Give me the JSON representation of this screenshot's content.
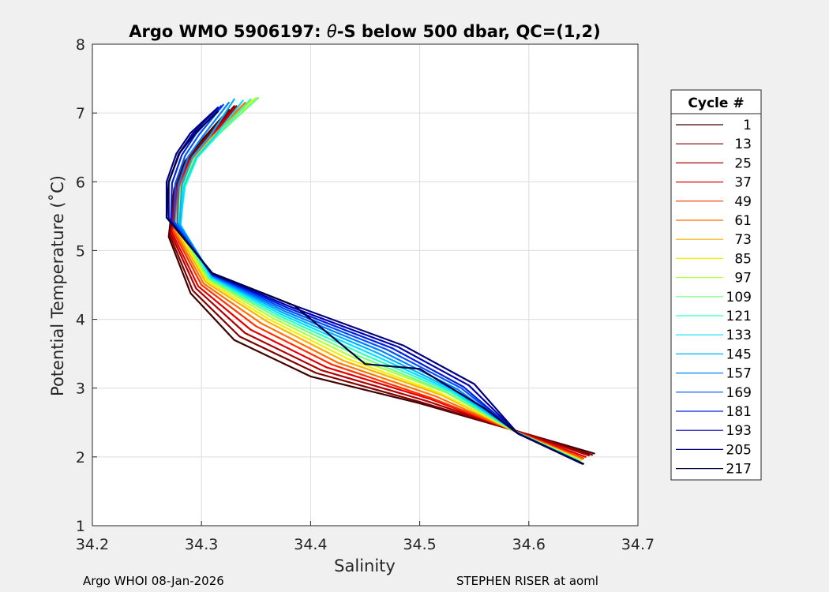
{
  "chart_data": {
    "type": "line",
    "title_prefix": "Argo WMO 5906197: ",
    "title_theta": "θ",
    "title_suffix": "-S below 500 dbar,  QC=(1,2)",
    "xlabel": "Salinity",
    "ylabel": "Potential Temperature (˚C)",
    "xlim": [
      34.2,
      34.7
    ],
    "ylim": [
      1,
      8
    ],
    "xticks": [
      "34.2",
      "34.3",
      "34.4",
      "34.5",
      "34.6",
      "34.7"
    ],
    "yticks": [
      "1",
      "2",
      "3",
      "4",
      "5",
      "6",
      "7",
      "8"
    ],
    "grid": true,
    "legend": {
      "title": "Cycle #",
      "placement": "right-outside",
      "entries": [
        "1",
        "13",
        "25",
        "37",
        "49",
        "61",
        "73",
        "85",
        "97",
        "109",
        "121",
        "133",
        "145",
        "157",
        "169",
        "181",
        "193",
        "205",
        "217"
      ],
      "colors": [
        "#400000",
        "#800000",
        "#b00000",
        "#e00000",
        "#ff3000",
        "#ff7000",
        "#ffb000",
        "#f0f000",
        "#b0ff40",
        "#70ff80",
        "#30ffc0",
        "#00e0ff",
        "#00b0ff",
        "#0080ff",
        "#0050ff",
        "#0020e0",
        "#0000b0",
        "#000080",
        "#000040"
      ]
    },
    "series": [
      {
        "name": "1",
        "x": [
          34.66,
          34.59,
          34.5,
          34.4,
          34.33,
          34.29,
          34.27,
          34.275,
          34.285,
          34.3,
          34.325
        ],
        "y": [
          2.05,
          2.37,
          2.78,
          3.17,
          3.7,
          4.38,
          5.2,
          5.9,
          6.3,
          6.6,
          7.05
        ]
      },
      {
        "name": "13",
        "x": [
          34.658,
          34.59,
          34.5,
          34.405,
          34.335,
          34.292,
          34.271,
          34.276,
          34.287,
          34.302,
          34.33
        ],
        "y": [
          2.03,
          2.37,
          2.8,
          3.22,
          3.75,
          4.42,
          5.22,
          5.9,
          6.3,
          6.6,
          7.1
        ]
      },
      {
        "name": "25",
        "x": [
          34.655,
          34.59,
          34.505,
          34.41,
          34.34,
          34.295,
          34.272,
          34.277,
          34.288,
          34.304,
          34.332
        ],
        "y": [
          2.02,
          2.37,
          2.82,
          3.26,
          3.8,
          4.45,
          5.24,
          5.9,
          6.3,
          6.6,
          7.1
        ]
      },
      {
        "name": "37",
        "x": [
          34.652,
          34.59,
          34.51,
          34.415,
          34.345,
          34.297,
          34.273,
          34.278,
          34.289,
          34.305,
          34.335
        ],
        "y": [
          2.0,
          2.36,
          2.84,
          3.3,
          3.85,
          4.48,
          5.26,
          5.9,
          6.3,
          6.6,
          7.12
        ]
      },
      {
        "name": "49",
        "x": [
          34.65,
          34.59,
          34.51,
          34.42,
          34.35,
          34.3,
          34.274,
          34.279,
          34.29,
          34.306,
          34.34
        ],
        "y": [
          1.98,
          2.36,
          2.86,
          3.34,
          3.9,
          4.5,
          5.28,
          5.9,
          6.3,
          6.6,
          7.15
        ]
      },
      {
        "name": "61",
        "x": [
          34.649,
          34.59,
          34.515,
          34.425,
          34.355,
          34.302,
          34.275,
          34.28,
          34.291,
          34.307,
          34.34
        ],
        "y": [
          1.97,
          2.35,
          2.88,
          3.37,
          3.94,
          4.52,
          5.3,
          5.91,
          6.3,
          6.6,
          7.15
        ]
      },
      {
        "name": "73",
        "x": [
          34.648,
          34.59,
          34.52,
          34.43,
          34.36,
          34.304,
          34.276,
          34.281,
          34.292,
          34.308,
          34.345
        ],
        "y": [
          1.96,
          2.35,
          2.9,
          3.4,
          3.97,
          4.54,
          5.32,
          5.91,
          6.31,
          6.62,
          7.18
        ]
      },
      {
        "name": "85",
        "x": [
          34.648,
          34.59,
          34.52,
          34.435,
          34.362,
          34.305,
          34.277,
          34.282,
          34.293,
          34.31,
          34.348
        ],
        "y": [
          1.95,
          2.35,
          2.92,
          3.42,
          4.0,
          4.56,
          5.33,
          5.92,
          6.32,
          6.63,
          7.2
        ]
      },
      {
        "name": "97",
        "x": [
          34.647,
          34.59,
          34.525,
          34.44,
          34.365,
          34.306,
          34.278,
          34.283,
          34.294,
          34.312,
          34.35
        ],
        "y": [
          1.95,
          2.35,
          2.93,
          3.44,
          4.02,
          4.58,
          5.34,
          5.92,
          6.33,
          6.64,
          7.22
        ]
      },
      {
        "name": "109",
        "x": [
          34.647,
          34.59,
          34.525,
          34.445,
          34.368,
          34.307,
          34.279,
          34.284,
          34.295,
          34.313,
          34.352
        ],
        "y": [
          1.94,
          2.35,
          2.94,
          3.46,
          4.04,
          4.59,
          5.35,
          5.93,
          6.34,
          6.65,
          7.22
        ]
      },
      {
        "name": "121",
        "x": [
          34.646,
          34.59,
          34.528,
          34.45,
          34.37,
          34.308,
          34.28,
          34.285,
          34.296,
          34.314,
          34.345
        ],
        "y": [
          1.94,
          2.35,
          2.95,
          3.48,
          4.06,
          4.6,
          5.36,
          5.93,
          6.35,
          6.66,
          7.2
        ]
      },
      {
        "name": "133",
        "x": [
          34.646,
          34.59,
          34.53,
          34.455,
          34.372,
          34.309,
          34.281,
          34.284,
          34.295,
          34.312,
          34.338
        ],
        "y": [
          1.93,
          2.35,
          2.96,
          3.5,
          4.08,
          4.61,
          5.37,
          5.94,
          6.35,
          6.66,
          7.18
        ]
      },
      {
        "name": "145",
        "x": [
          34.646,
          34.59,
          34.532,
          34.46,
          34.374,
          34.31,
          34.28,
          34.282,
          34.292,
          34.308,
          34.33
        ],
        "y": [
          1.93,
          2.35,
          2.97,
          3.52,
          4.1,
          4.62,
          5.38,
          5.95,
          6.36,
          6.67,
          7.2
        ]
      },
      {
        "name": "157",
        "x": [
          34.647,
          34.59,
          34.535,
          34.465,
          34.376,
          34.31,
          34.278,
          34.279,
          34.288,
          34.302,
          34.325
        ],
        "y": [
          1.92,
          2.34,
          2.98,
          3.54,
          4.12,
          4.63,
          5.4,
          5.96,
          6.37,
          6.68,
          7.15
        ]
      },
      {
        "name": "169",
        "x": [
          34.647,
          34.59,
          34.538,
          34.47,
          34.378,
          34.31,
          34.275,
          34.276,
          34.285,
          34.298,
          34.32
        ],
        "y": [
          1.92,
          2.34,
          3.0,
          3.56,
          4.14,
          4.64,
          5.42,
          5.97,
          6.38,
          6.69,
          7.12
        ]
      },
      {
        "name": "181",
        "x": [
          34.648,
          34.59,
          34.54,
          34.475,
          34.38,
          34.31,
          34.272,
          34.273,
          34.282,
          34.295,
          34.318
        ],
        "y": [
          1.91,
          2.34,
          3.02,
          3.58,
          4.16,
          4.65,
          5.44,
          5.98,
          6.39,
          6.7,
          7.1
        ]
      },
      {
        "name": "193",
        "x": [
          34.648,
          34.59,
          34.545,
          34.48,
          34.382,
          34.31,
          34.27,
          34.27,
          34.279,
          34.292,
          34.315
        ],
        "y": [
          1.91,
          2.34,
          3.04,
          3.6,
          4.18,
          4.66,
          5.46,
          5.99,
          6.4,
          6.7,
          7.08
        ]
      },
      {
        "name": "205",
        "x": [
          34.649,
          34.59,
          34.55,
          34.485,
          34.385,
          34.31,
          34.268,
          34.268,
          34.277,
          34.29,
          34.313
        ],
        "y": [
          1.9,
          2.34,
          3.06,
          3.62,
          4.2,
          4.67,
          5.48,
          6.0,
          6.41,
          6.71,
          7.05
        ]
      },
      {
        "name": "217",
        "x": [
          34.65,
          34.59,
          34.56,
          34.5,
          34.45,
          34.385,
          34.31,
          34.268,
          34.27,
          34.28,
          34.295,
          34.315
        ],
        "y": [
          1.9,
          2.34,
          2.7,
          3.28,
          3.35,
          4.2,
          4.67,
          5.48,
          6.0,
          6.42,
          6.72,
          7.02
        ]
      }
    ]
  },
  "footer": {
    "left": "Argo WHOI 08-Jan-2026",
    "right": "STEPHEN RISER at aoml"
  }
}
